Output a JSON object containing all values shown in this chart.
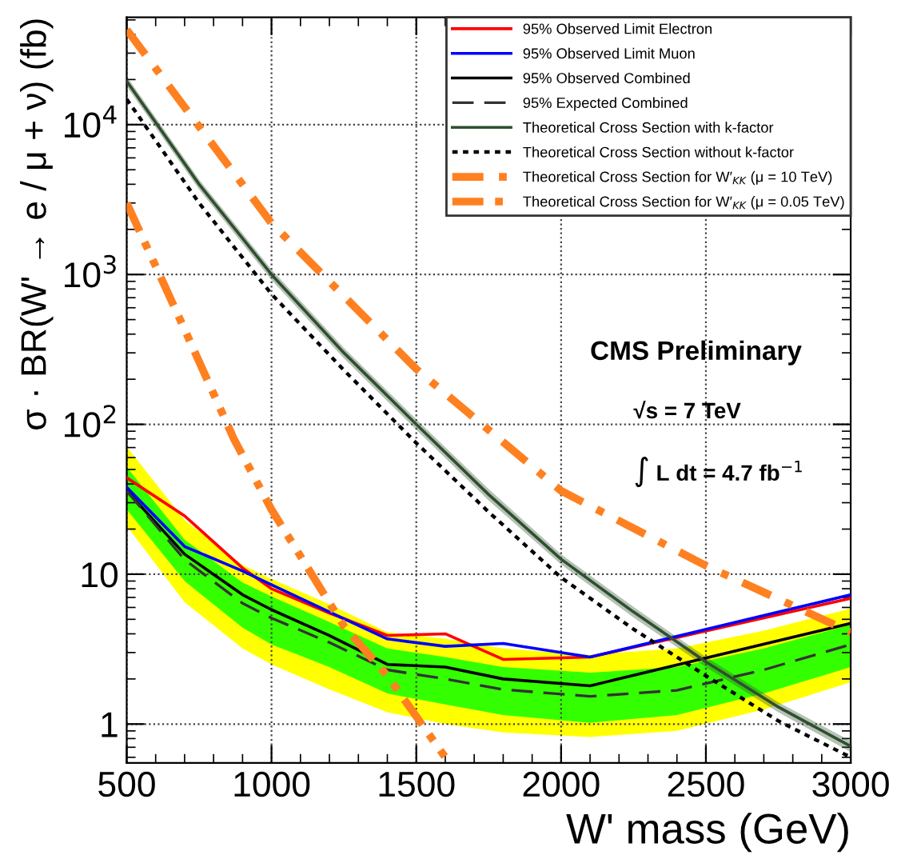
{
  "chart_data": {
    "type": "line",
    "xlabel": "W' mass (GeV)",
    "ylabel": "σ · BR(W' → e / μ + ν) (fb)",
    "log": "y",
    "grid": true,
    "legend": "top right",
    "xlim": [
      500,
      3000
    ],
    "xticks": [
      500,
      1000,
      1500,
      2000,
      2500,
      3000
    ],
    "ylim": [
      0.55,
      52000
    ],
    "yticks": [
      {
        "value": 1,
        "label": "1"
      },
      {
        "value": 10,
        "label": "10"
      },
      {
        "value": 100,
        "label": "10$^{2}$"
      },
      {
        "value": 1000,
        "label": "10$^{3}$"
      },
      {
        "value": 10000,
        "label": "10$^{4}$"
      }
    ],
    "annotations": [
      "CMS Preliminary",
      "√s = 7 TeV",
      "∫ L dt = 4.7 fb$^{−1}$"
    ],
    "series": [
      {
        "type": "area",
        "color": "#ffff00",
        "x": [
          500,
          700,
          900,
          1000,
          1200,
          1400,
          1600,
          1800,
          2100,
          2400,
          2700,
          3000
        ],
        "values": [
          null,
          null,
          null,
          null,
          null,
          null,
          null,
          null,
          null,
          null,
          null,
          null
        ],
        "lower": [
          21,
          6.5,
          3.2,
          2.5,
          1.7,
          1.2,
          1.0,
          0.88,
          0.82,
          0.9,
          1.25,
          1.9
        ],
        "upper": [
          71,
          23,
          11.5,
          9.3,
          6.3,
          4.1,
          3.7,
          3.2,
          2.9,
          3.2,
          4.2,
          5.9
        ]
      },
      {
        "type": "area",
        "color": "#33ff00",
        "x": [
          500,
          700,
          900,
          1000,
          1200,
          1400,
          1600,
          1800,
          2100,
          2400,
          2700,
          3000
        ],
        "values": [
          null,
          null,
          null,
          null,
          null,
          null,
          null,
          null,
          null,
          null,
          null,
          null
        ],
        "lower": [
          27,
          9,
          4.4,
          3.4,
          2.4,
          1.6,
          1.35,
          1.15,
          1.02,
          1.15,
          1.6,
          2.4
        ],
        "upper": [
          52,
          17,
          8.8,
          7.1,
          4.8,
          3.2,
          2.8,
          2.4,
          2.2,
          2.4,
          3.2,
          4.6
        ]
      },
      {
        "name": "95% Observed Limit Electron",
        "color": "#ff0000",
        "line_style": "solid",
        "x": [
          500,
          700,
          900,
          1000,
          1200,
          1400,
          1600,
          1800,
          2100,
          3000
        ],
        "values": [
          44,
          24.5,
          11,
          8,
          5.5,
          3.9,
          4.0,
          2.7,
          2.8,
          6.9
        ]
      },
      {
        "name": "95% Observed Limit Muon",
        "color": "#0000ff",
        "line_style": "solid",
        "x": [
          500,
          700,
          900,
          1000,
          1200,
          1400,
          1600,
          1800,
          2100,
          3000
        ],
        "values": [
          38,
          15.3,
          10.5,
          8.5,
          5.6,
          3.7,
          3.3,
          3.45,
          2.8,
          7.3
        ]
      },
      {
        "name": "95% Observed Combined",
        "color": "#000000",
        "line_style": "solid",
        "x": [
          500,
          700,
          900,
          1000,
          1200,
          1400,
          1600,
          1800,
          2100,
          3000
        ],
        "values": [
          36,
          13.6,
          7.3,
          5.8,
          3.9,
          2.5,
          2.4,
          2.0,
          1.8,
          4.7
        ]
      },
      {
        "name": "95% Expected Combined",
        "color": "#333333",
        "line_style": "dashed",
        "x": [
          500,
          700,
          900,
          1000,
          1200,
          1400,
          1600,
          1800,
          2100,
          2400,
          2700,
          3000
        ],
        "values": [
          36,
          12.5,
          6.4,
          5.1,
          3.5,
          2.3,
          2.0,
          1.7,
          1.53,
          1.68,
          2.3,
          3.4
        ]
      },
      {
        "name": "Theoretical Cross Section with k-factor",
        "color": "#2f4f2f",
        "line_style": "solid",
        "x": [
          500,
          750,
          1000,
          1250,
          1500,
          1750,
          2000,
          2250,
          2500,
          2750,
          3000
        ],
        "values": [
          19500,
          4000,
          1000,
          300,
          100,
          34,
          12.6,
          5.6,
          2.6,
          1.3,
          0.71
        ],
        "lower": [
          18000,
          3700,
          920,
          276,
          92,
          31,
          11.6,
          5.15,
          2.4,
          1.2,
          0.65
        ],
        "upper": [
          21000,
          4300,
          1080,
          324,
          108,
          37,
          13.6,
          6.05,
          2.8,
          1.4,
          0.77
        ]
      },
      {
        "name": "Theoretical Cross Section without k-factor",
        "color": "#000000",
        "line_style": "dotted",
        "x": [
          500,
          750,
          1000,
          1250,
          1500,
          1750,
          2000,
          2250,
          2500,
          2750,
          3000
        ],
        "values": [
          14800,
          3000,
          740,
          230,
          75,
          26,
          9.5,
          4.3,
          2.1,
          1.05,
          0.6
        ]
      },
      {
        "name": "Theoretical Cross Section for W′$_{KK}$ (μ = 10 TeV)",
        "color": "#ff8020",
        "line_style": "dashdot",
        "x": [
          500,
          1000,
          1500,
          2000,
          2500,
          3000
        ],
        "values": [
          43000,
          2200,
          234,
          36,
          11.4,
          4.1
        ]
      },
      {
        "name": "Theoretical Cross Section for W′$_{KK}$ (μ = 0.05 TeV)",
        "color": "#ff8020",
        "line_style": "dashdotdot",
        "x": [
          500,
          700,
          870,
          1000,
          1250,
          1400,
          1600
        ],
        "values": [
          3000,
          430,
          80,
          27,
          4.5,
          2.1,
          0.6
        ]
      }
    ]
  }
}
